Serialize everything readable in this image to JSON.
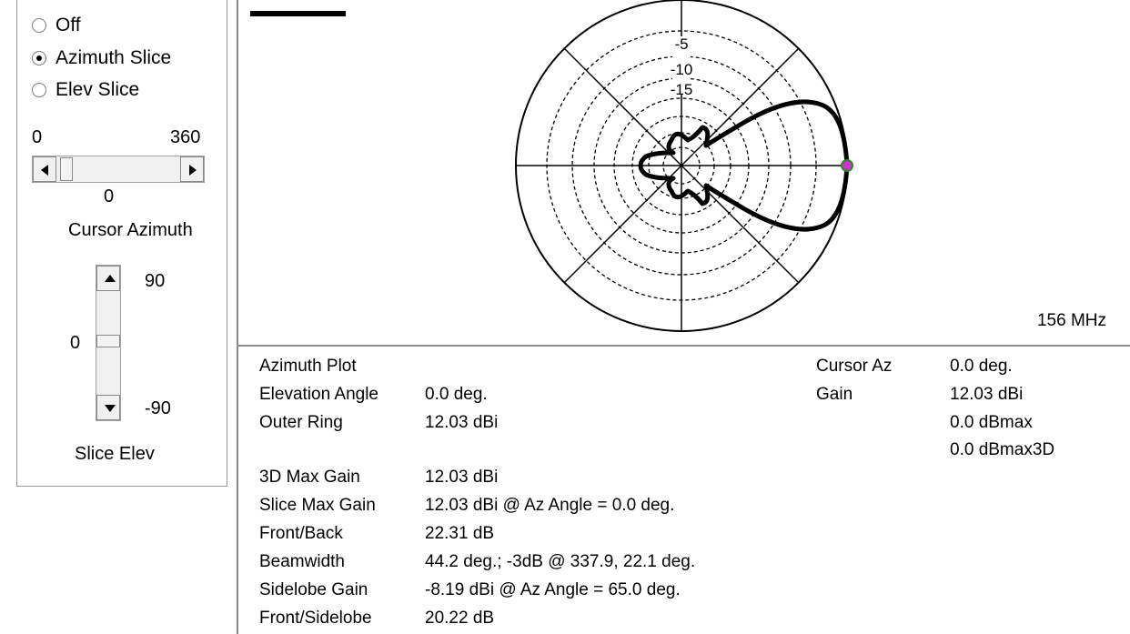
{
  "controls": {
    "radios": [
      {
        "label": "Off",
        "checked": false
      },
      {
        "label": "Azimuth Slice",
        "checked": true
      },
      {
        "label": "Elev Slice",
        "checked": false
      }
    ],
    "azimuth_min": "0",
    "azimuth_max": "360",
    "azimuth_value": "0",
    "azimuth_label": "Cursor Azimuth",
    "elev_max": "90",
    "elev_value": "0",
    "elev_min": "-90",
    "elev_label": "Slice Elev"
  },
  "plot": {
    "ring_labels": [
      "-5",
      "-10",
      "-15"
    ],
    "frequency": "156 MHz",
    "cursor_color": "#cc33cc"
  },
  "info": {
    "title": "Azimuth Plot",
    "rows": [
      {
        "label": "Elevation Angle",
        "value": "0.0 deg."
      },
      {
        "label": "Outer Ring",
        "value": "12.03 dBi"
      },
      {
        "label": "3D Max Gain",
        "value": "12.03 dBi"
      },
      {
        "label": "Slice Max Gain",
        "value": "12.03 dBi @ Az Angle = 0.0 deg."
      },
      {
        "label": "Front/Back",
        "value": "22.31 dB"
      },
      {
        "label": "Beamwidth",
        "value": "44.2 deg.; -3dB @ 337.9, 22.1 deg."
      },
      {
        "label": "Sidelobe Gain",
        "value": "-8.19 dBi @ Az Angle = 65.0 deg."
      },
      {
        "label": "Front/Sidelobe",
        "value": "20.22 dB"
      }
    ],
    "cursor": {
      "az_label": "Cursor Az",
      "az_value": "0.0 deg.",
      "gain_label": "Gain",
      "gain_value": "12.03 dBi",
      "dbmax": "0.0 dBmax",
      "dbmax3d": "0.0 dBmax3D"
    }
  }
}
